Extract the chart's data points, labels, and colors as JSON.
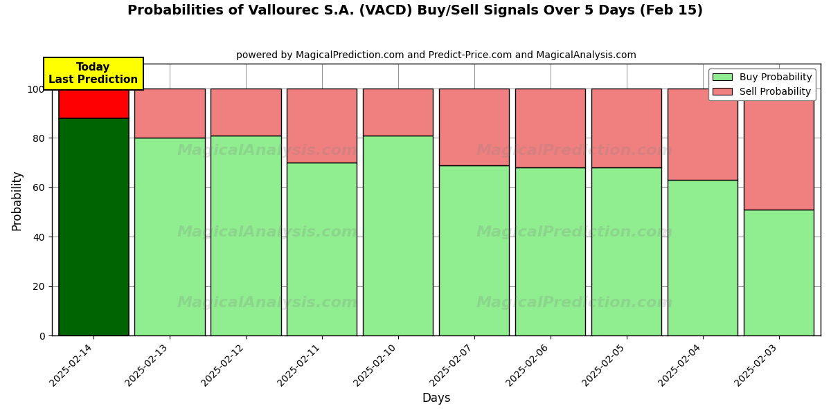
{
  "title": "Probabilities of Vallourec S.A. (VACD) Buy/Sell Signals Over 5 Days (Feb 15)",
  "subtitle": "powered by MagicalPrediction.com and Predict-Price.com and MagicalAnalysis.com",
  "xlabel": "Days",
  "ylabel": "Probability",
  "dates": [
    "2025-02-14",
    "2025-02-13",
    "2025-02-12",
    "2025-02-11",
    "2025-02-10",
    "2025-02-07",
    "2025-02-06",
    "2025-02-05",
    "2025-02-04",
    "2025-02-03"
  ],
  "buy_probs": [
    88,
    80,
    81,
    70,
    81,
    69,
    68,
    68,
    63,
    51
  ],
  "sell_probs": [
    12,
    20,
    19,
    30,
    19,
    31,
    32,
    32,
    37,
    49
  ],
  "today_buy_color": "#006400",
  "today_sell_color": "#FF0000",
  "other_buy_color": "#90EE90",
  "other_sell_color": "#F08080",
  "today_annotation": "Today\nLast Prediction",
  "annotation_bg_color": "#FFFF00",
  "bar_edge_color": "black",
  "ylim": [
    0,
    110
  ],
  "dashed_line_y": 110,
  "legend_buy_label": "Buy Probability",
  "legend_sell_label": "Sell Probability",
  "figsize": [
    12,
    6
  ],
  "dpi": 100
}
